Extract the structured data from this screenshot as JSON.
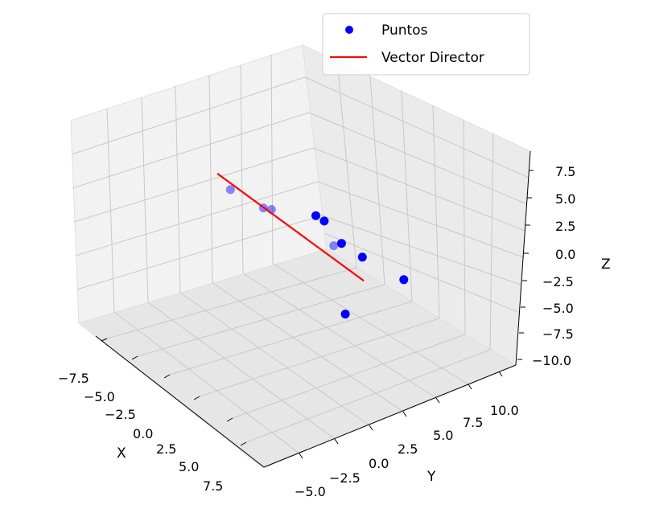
{
  "chart_data": {
    "type": "scatter",
    "projection": "3d",
    "grid": true,
    "legend_position": "top-right",
    "legend": [
      {
        "label": "Puntos",
        "kind": "marker",
        "color": "#0000ff"
      },
      {
        "label": "Vector Director",
        "kind": "line",
        "color": "#ff0000"
      }
    ],
    "axes": {
      "x": {
        "label": "X",
        "ticks": [
          "−7.5",
          "−5.0",
          "−2.5",
          "0.0",
          "2.5",
          "5.0",
          "7.5"
        ]
      },
      "y": {
        "label": "Y",
        "ticks": [
          "−5.0",
          "−2.5",
          "0.0",
          "2.5",
          "5.0",
          "7.5",
          "10.0"
        ]
      },
      "z": {
        "label": "Z",
        "ticks": [
          "7.5",
          "5.0",
          "2.5",
          "0.0",
          "−2.5",
          "−5.0",
          "−7.5",
          "−10.0"
        ]
      }
    },
    "series": [
      {
        "name": "Puntos",
        "type": "scatter",
        "color": "#0000ff",
        "points": [
          {
            "x": -6.5,
            "y": -4.5,
            "z": 4.5,
            "alpha": 0.45
          },
          {
            "x": -4.0,
            "y": -3.0,
            "z": 3.5,
            "alpha": 0.45
          },
          {
            "x": -3.5,
            "y": -2.5,
            "z": 3.5,
            "alpha": 0.45
          },
          {
            "x": -1.0,
            "y": 0.5,
            "z": 3.5,
            "alpha": 1.0
          },
          {
            "x": -0.5,
            "y": 1.0,
            "z": 3.0,
            "alpha": 1.0
          },
          {
            "x": 0.5,
            "y": 2.0,
            "z": 0.5,
            "alpha": 1.0
          },
          {
            "x": 0.0,
            "y": 1.5,
            "z": 0.0,
            "alpha": 0.45
          },
          {
            "x": 2.0,
            "y": 3.0,
            "z": -0.5,
            "alpha": 1.0
          },
          {
            "x": 4.0,
            "y": 6.0,
            "z": -3.0,
            "alpha": 1.0
          },
          {
            "x": 5.0,
            "y": -2.5,
            "z": -3.5,
            "alpha": 1.0
          }
        ]
      },
      {
        "name": "Vector Director",
        "type": "line",
        "color": "#ff0000",
        "points": [
          {
            "x": -7.5,
            "y": -5.0,
            "z": 6.0
          },
          {
            "x": 2.5,
            "y": 2.5,
            "z": -3.0
          }
        ]
      }
    ]
  }
}
